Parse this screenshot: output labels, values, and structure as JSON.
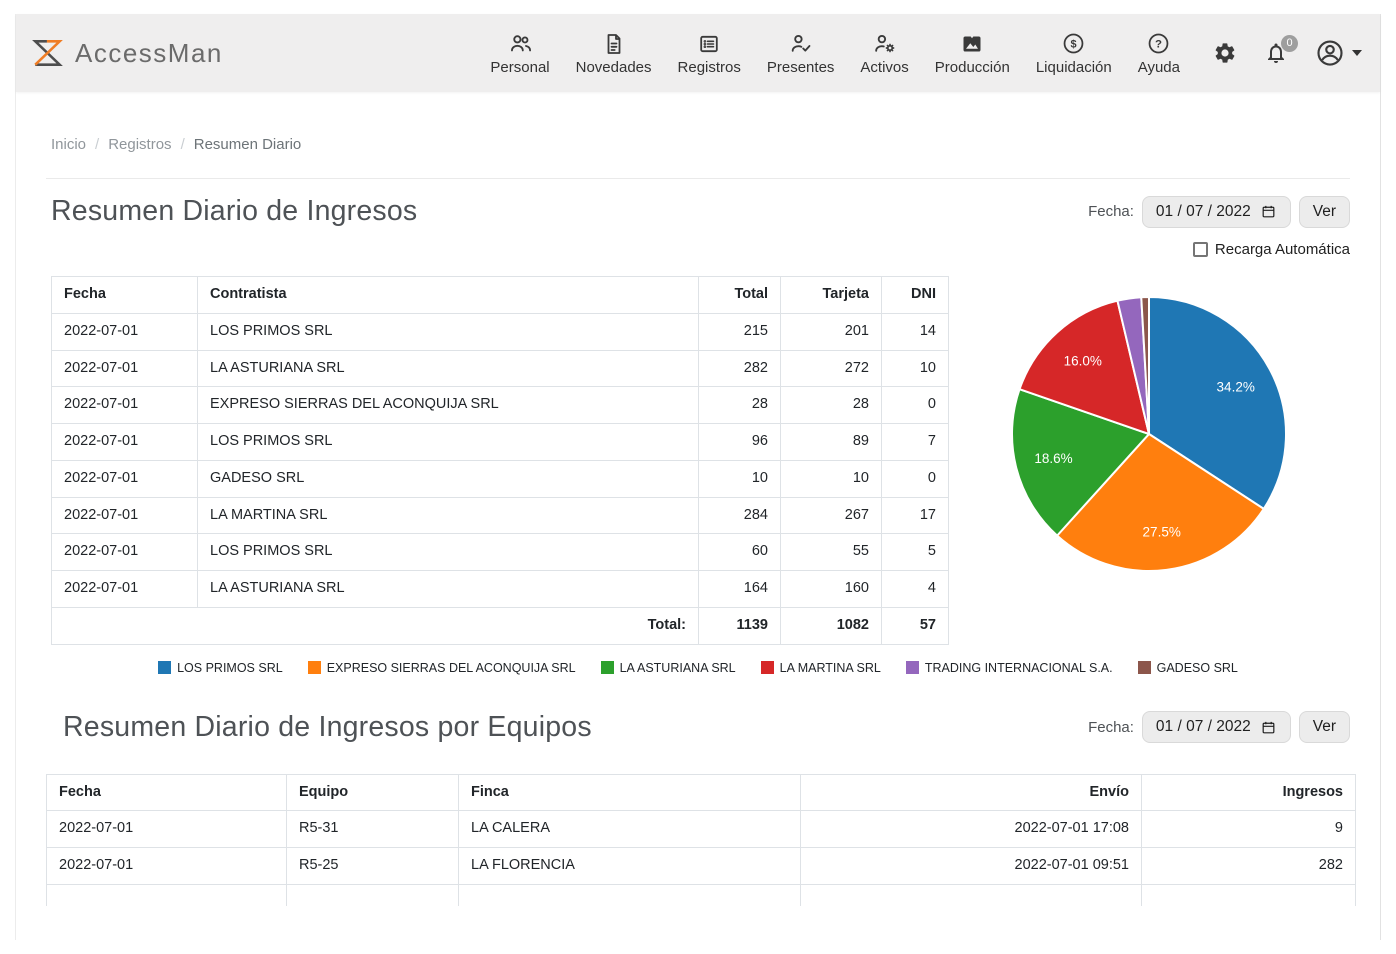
{
  "navbar": {
    "brand": "AccessMan",
    "items": [
      {
        "label": "Personal",
        "icon": "people-icon"
      },
      {
        "label": "Novedades",
        "icon": "document-icon"
      },
      {
        "label": "Registros",
        "icon": "list-icon"
      },
      {
        "label": "Presentes",
        "icon": "person-check-icon"
      },
      {
        "label": "Activos",
        "icon": "person-gear-icon"
      },
      {
        "label": "Producción",
        "icon": "image-icon"
      },
      {
        "label": "Liquidación",
        "icon": "dollar-circle-icon"
      },
      {
        "label": "Ayuda",
        "icon": "help-circle-icon"
      }
    ],
    "notifications_count": "0"
  },
  "breadcrumb": {
    "items": [
      "Inicio",
      "Registros",
      "Resumen Diario"
    ],
    "separator": "/"
  },
  "ingresos": {
    "title": "Resumen Diario de Ingresos",
    "fecha_label": "Fecha:",
    "date_value": "01 / 07 / 2022",
    "ver_label": "Ver",
    "recarga_label": "Recarga Automática",
    "recarga_checked": false,
    "table": {
      "headers": [
        "Fecha",
        "Contratista",
        "Total",
        "Tarjeta",
        "DNI"
      ],
      "rows": [
        [
          "2022-07-01",
          "LOS PRIMOS SRL",
          "215",
          "201",
          "14"
        ],
        [
          "2022-07-01",
          "LA ASTURIANA SRL",
          "282",
          "272",
          "10"
        ],
        [
          "2022-07-01",
          "EXPRESO SIERRAS DEL ACONQUIJA SRL",
          "28",
          "28",
          "0"
        ],
        [
          "2022-07-01",
          "LOS PRIMOS SRL",
          "96",
          "89",
          "7"
        ],
        [
          "2022-07-01",
          "GADESO SRL",
          "10",
          "10",
          "0"
        ],
        [
          "2022-07-01",
          "LA MARTINA SRL",
          "284",
          "267",
          "17"
        ],
        [
          "2022-07-01",
          "LOS PRIMOS SRL",
          "60",
          "55",
          "5"
        ],
        [
          "2022-07-01",
          "LA ASTURIANA SRL",
          "164",
          "160",
          "4"
        ]
      ],
      "total_label": "Total:",
      "totals": [
        "1139",
        "1082",
        "57"
      ]
    }
  },
  "chart_data": {
    "type": "pie",
    "labels": [
      "LOS PRIMOS SRL",
      "EXPRESO SIERRAS DEL ACONQUIJA SRL",
      "LA ASTURIANA SRL",
      "LA MARTINA SRL",
      "TRADING INTERNACIONAL S.A.",
      "GADESO SRL"
    ],
    "values_percent": [
      34.2,
      27.5,
      18.6,
      16.0,
      2.8,
      0.9
    ],
    "slice_labels": [
      "34.2%",
      "27.5%",
      "18.6%",
      "16.0%",
      "",
      ""
    ],
    "colors": [
      "#1f77b4",
      "#ff7f0e",
      "#2ca02c",
      "#d62728",
      "#9467bd",
      "#8c564b"
    ],
    "start_angle_deg": 0,
    "direction": "clockwise",
    "legend_position": "bottom"
  },
  "equipos": {
    "title": "Resumen Diario de Ingresos por Equipos",
    "fecha_label": "Fecha:",
    "date_value": "01 / 07 / 2022",
    "ver_label": "Ver",
    "table": {
      "headers": [
        "Fecha",
        "Equipo",
        "Finca",
        "Envío",
        "Ingresos"
      ],
      "rows": [
        [
          "2022-07-01",
          "R5-31",
          "LA CALERA",
          "2022-07-01 17:08",
          "9"
        ],
        [
          "2022-07-01",
          "R5-25",
          "LA FLORENCIA",
          "2022-07-01 09:51",
          "282"
        ]
      ]
    }
  },
  "colors": {
    "accent_orange": "#ef7d25",
    "navbar_bg": "#efeeee",
    "badge_gray": "#9e9e9e",
    "table_border": "#dee2e6"
  }
}
